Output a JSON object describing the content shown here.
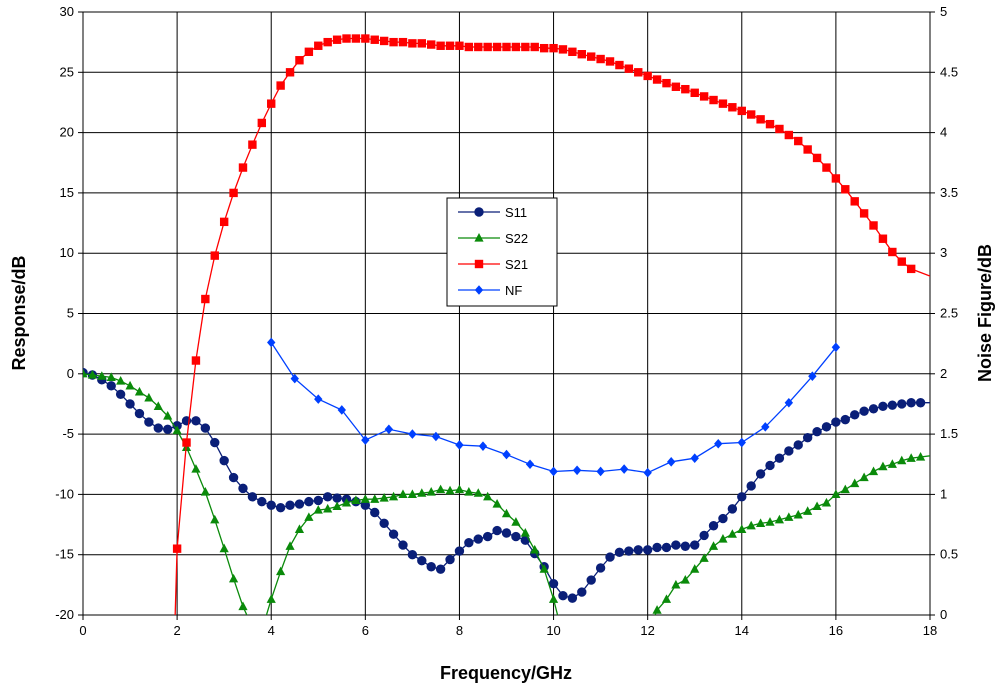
{
  "chart_data": {
    "type": "line",
    "xlabel": "Frequency/GHz",
    "ylabel_left": "Response/dB",
    "ylabel_right": "Noise Figure/dB",
    "xlim": [
      0,
      18
    ],
    "ylim_left": [
      -20,
      30
    ],
    "ylim_right": [
      0,
      5
    ],
    "x_ticks": [
      "0",
      "2",
      "4",
      "6",
      "8",
      "10",
      "12",
      "14",
      "16",
      "18"
    ],
    "y_left_ticks": [
      "-20",
      "-15",
      "-10",
      "-5",
      "0",
      "5",
      "10",
      "15",
      "20",
      "25",
      "30"
    ],
    "y_right_ticks": [
      "0",
      "0.5",
      "1",
      "1.5",
      "2",
      "2.5",
      "3",
      "3.5",
      "4",
      "4.5",
      "5"
    ],
    "grid": true,
    "legend_position": "center",
    "series": [
      {
        "name": "S11",
        "axis": "left",
        "color": "#0a1f78",
        "marker": "circle",
        "x": [
          0,
          0.2,
          0.4,
          0.6,
          0.8,
          1.0,
          1.2,
          1.4,
          1.6,
          1.8,
          2.0,
          2.2,
          2.4,
          2.6,
          2.8,
          3.0,
          3.2,
          3.4,
          3.6,
          3.8,
          4.0,
          4.2,
          4.4,
          4.6,
          4.8,
          5.0,
          5.2,
          5.4,
          5.6,
          5.8,
          6.0,
          6.2,
          6.4,
          6.6,
          6.8,
          7.0,
          7.2,
          7.4,
          7.6,
          7.8,
          8.0,
          8.2,
          8.4,
          8.6,
          8.8,
          9.0,
          9.2,
          9.4,
          9.6,
          9.8,
          10.0,
          10.2,
          10.4,
          10.6,
          10.8,
          11.0,
          11.2,
          11.4,
          11.6,
          11.8,
          12.0,
          12.2,
          12.4,
          12.6,
          12.8,
          13.0,
          13.2,
          13.4,
          13.6,
          13.8,
          14.0,
          14.2,
          14.4,
          14.6,
          14.8,
          15.0,
          15.2,
          15.4,
          15.6,
          15.8,
          16.0,
          16.2,
          16.4,
          16.6,
          16.8,
          17.0,
          17.2,
          17.4,
          17.6,
          17.8
        ],
        "y": [
          0.1,
          -0.1,
          -0.5,
          -1.0,
          -1.7,
          -2.5,
          -3.3,
          -4.0,
          -4.5,
          -4.6,
          -4.3,
          -3.9,
          -3.9,
          -4.5,
          -5.7,
          -7.2,
          -8.6,
          -9.5,
          -10.2,
          -10.6,
          -10.9,
          -11.1,
          -10.9,
          -10.8,
          -10.6,
          -10.5,
          -10.2,
          -10.3,
          -10.4,
          -10.6,
          -10.9,
          -11.5,
          -12.4,
          -13.3,
          -14.2,
          -15.0,
          -15.5,
          -16.0,
          -16.2,
          -15.4,
          -14.7,
          -14.0,
          -13.7,
          -13.5,
          -13.0,
          -13.2,
          -13.5,
          -13.8,
          -14.9,
          -16.0,
          -17.4,
          -18.4,
          -18.6,
          -18.1,
          -17.1,
          -16.1,
          -15.2,
          -14.8,
          -14.7,
          -14.6,
          -14.6,
          -14.4,
          -14.4,
          -14.2,
          -14.3,
          -14.2,
          -13.4,
          -12.6,
          -12.0,
          -11.2,
          -10.2,
          -9.3,
          -8.3,
          -7.6,
          -7.0,
          -6.4,
          -5.9,
          -5.3,
          -4.8,
          -4.4,
          -4.0,
          -3.8,
          -3.4,
          -3.1,
          -2.9,
          -2.7,
          -2.6,
          -2.5,
          -2.4,
          -2.4
        ]
      },
      {
        "name": "S22",
        "axis": "left",
        "color": "#0a8a0a",
        "marker": "triangle",
        "x": [
          0,
          0.2,
          0.4,
          0.6,
          0.8,
          1.0,
          1.2,
          1.4,
          1.6,
          1.8,
          2.0,
          2.2,
          2.4,
          2.6,
          2.8,
          3.0,
          3.2,
          3.4,
          3.6,
          3.8,
          4.0,
          4.2,
          4.4,
          4.6,
          4.8,
          5.0,
          5.2,
          5.4,
          5.6,
          5.8,
          6.0,
          6.2,
          6.4,
          6.6,
          6.8,
          7.0,
          7.2,
          7.4,
          7.6,
          7.8,
          8.0,
          8.2,
          8.4,
          8.6,
          8.8,
          9.0,
          9.2,
          9.4,
          9.6,
          9.8,
          10.0,
          10.2,
          10.4,
          10.6,
          10.8,
          11.0,
          11.2,
          11.4,
          11.6,
          11.8,
          12.0,
          12.2,
          12.4,
          12.6,
          12.8,
          13.0,
          13.2,
          13.4,
          13.6,
          13.8,
          14.0,
          14.2,
          14.4,
          14.6,
          14.8,
          15.0,
          15.2,
          15.4,
          15.6,
          15.8,
          16.0,
          16.2,
          16.4,
          16.6,
          16.8,
          17.0,
          17.2,
          17.4,
          17.6,
          17.8
        ],
        "y": [
          0.0,
          -0.1,
          -0.2,
          -0.3,
          -0.6,
          -1.0,
          -1.5,
          -2.0,
          -2.7,
          -3.5,
          -4.7,
          -6.1,
          -7.9,
          -9.8,
          -12.1,
          -14.5,
          -17.0,
          -19.3,
          null,
          null,
          -18.7,
          -16.4,
          -14.3,
          -12.9,
          -11.9,
          -11.3,
          -11.2,
          -11.0,
          -10.7,
          -10.5,
          -10.4,
          -10.4,
          -10.3,
          -10.2,
          -10.0,
          -10.0,
          -9.9,
          -9.8,
          -9.6,
          -9.7,
          -9.6,
          -9.8,
          -9.9,
          -10.2,
          -10.8,
          -11.6,
          -12.3,
          -13.2,
          -14.6,
          -16.2,
          -18.7,
          null,
          null,
          null,
          null,
          null,
          null,
          null,
          null,
          null,
          null,
          -19.6,
          -18.7,
          -17.5,
          -17.1,
          -16.2,
          -15.3,
          -14.3,
          -13.7,
          -13.3,
          -12.9,
          -12.6,
          -12.4,
          -12.3,
          -12.1,
          -11.9,
          -11.7,
          -11.4,
          -11.0,
          -10.7,
          -10.0,
          -9.6,
          -9.1,
          -8.6,
          -8.1,
          -7.7,
          -7.5,
          -7.2,
          -7.0,
          -6.9
        ]
      },
      {
        "name": "S21",
        "axis": "left",
        "color": "#ff0000",
        "marker": "square",
        "x": [
          2.0,
          2.2,
          2.4,
          2.6,
          2.8,
          3.0,
          3.2,
          3.4,
          3.6,
          3.8,
          4.0,
          4.2,
          4.4,
          4.6,
          4.8,
          5.0,
          5.2,
          5.4,
          5.6,
          5.8,
          6.0,
          6.2,
          6.4,
          6.6,
          6.8,
          7.0,
          7.2,
          7.4,
          7.6,
          7.8,
          8.0,
          8.2,
          8.4,
          8.6,
          8.8,
          9.0,
          9.2,
          9.4,
          9.6,
          9.8,
          10.0,
          10.2,
          10.4,
          10.6,
          10.8,
          11.0,
          11.2,
          11.4,
          11.6,
          11.8,
          12.0,
          12.2,
          12.4,
          12.6,
          12.8,
          13.0,
          13.2,
          13.4,
          13.6,
          13.8,
          14.0,
          14.2,
          14.4,
          14.6,
          14.8,
          15.0,
          15.2,
          15.4,
          15.6,
          15.8,
          16.0,
          16.2,
          16.4,
          16.6,
          16.8,
          17.0,
          17.2,
          17.4,
          17.6
        ],
        "y": [
          -14.5,
          -5.7,
          1.1,
          6.2,
          9.8,
          12.6,
          15.0,
          17.1,
          19.0,
          20.8,
          22.4,
          23.9,
          25.0,
          26.0,
          26.7,
          27.2,
          27.5,
          27.7,
          27.8,
          27.8,
          27.8,
          27.7,
          27.6,
          27.5,
          27.5,
          27.4,
          27.4,
          27.3,
          27.2,
          27.2,
          27.2,
          27.1,
          27.1,
          27.1,
          27.1,
          27.1,
          27.1,
          27.1,
          27.1,
          27.0,
          27.0,
          26.9,
          26.7,
          26.5,
          26.3,
          26.1,
          25.9,
          25.6,
          25.3,
          25.0,
          24.7,
          24.4,
          24.1,
          23.8,
          23.6,
          23.3,
          23.0,
          22.7,
          22.4,
          22.1,
          21.8,
          21.5,
          21.1,
          20.7,
          20.3,
          19.8,
          19.3,
          18.6,
          17.9,
          17.1,
          16.2,
          15.3,
          14.3,
          13.3,
          12.3,
          11.2,
          10.1,
          9.3,
          8.7
        ]
      },
      {
        "name": "NF",
        "axis": "right",
        "color": "#0040ff",
        "marker": "diamond",
        "x": [
          4.0,
          4.5,
          5.0,
          5.5,
          6.0,
          6.5,
          7.0,
          7.5,
          8.0,
          8.5,
          9.0,
          9.5,
          10.0,
          10.5,
          11.0,
          11.5,
          12.0,
          12.5,
          13.0,
          13.5,
          14.0,
          14.5,
          15.0,
          15.5,
          16.0
        ],
        "y": [
          2.26,
          1.96,
          1.79,
          1.7,
          1.45,
          1.54,
          1.5,
          1.48,
          1.41,
          1.4,
          1.33,
          1.25,
          1.19,
          1.2,
          1.19,
          1.21,
          1.18,
          1.27,
          1.3,
          1.42,
          1.43,
          1.56,
          1.76,
          1.98,
          2.22
        ]
      }
    ]
  }
}
